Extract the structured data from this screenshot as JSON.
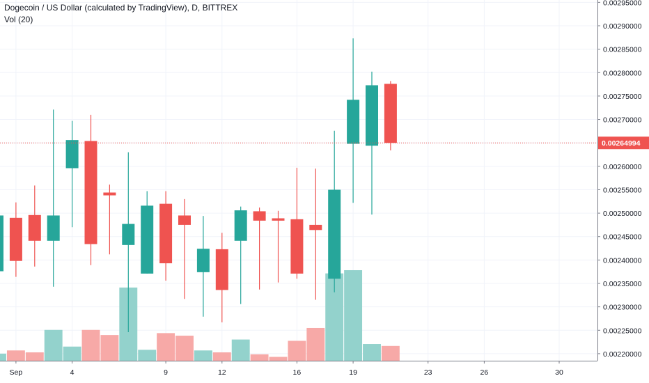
{
  "header": {
    "title": "Dogecoin / US Dollar (calculated by TradingView), D, BITTREX",
    "indicator": "Vol (20)"
  },
  "colors": {
    "up": "#26a69a",
    "down": "#ef5350",
    "vol_up": "#93d2cc",
    "vol_down": "#f7a9a7",
    "grid": "#f0f3fa",
    "axis_line": "#787b86",
    "last_price": "#ef5350"
  },
  "chart_data": {
    "type": "candlestick",
    "symbol": "Dogecoin / US Dollar",
    "interval": "D",
    "exchange": "BITTREX",
    "last_price": "0.00264994",
    "y_ticks": [
      "0.00295000",
      "0.00290000",
      "0.00285000",
      "0.00280000",
      "0.00275000",
      "0.00270000",
      "0.00265000",
      "0.00260000",
      "0.00255000",
      "0.00250000",
      "0.00245000",
      "0.00240000",
      "0.00235000",
      "0.00230000",
      "0.00225000",
      "0.00220000"
    ],
    "ylim": [
      0.002185,
      0.002955
    ],
    "x_ticks": [
      {
        "label": "Sep",
        "day": 1
      },
      {
        "label": "4",
        "day": 4
      },
      {
        "label": "9",
        "day": 9
      },
      {
        "label": "12",
        "day": 12
      },
      {
        "label": "16",
        "day": 16
      },
      {
        "label": "19",
        "day": 19
      },
      {
        "label": "23",
        "day": 23
      },
      {
        "label": "26",
        "day": 26
      },
      {
        "label": "30",
        "day": 30
      }
    ],
    "candles": [
      {
        "day": 0,
        "open": 0.002376,
        "high": 0.0025,
        "low": 0.00236,
        "close": 0.002495,
        "volume": 5.5e-06
      },
      {
        "day": 1,
        "open": 0.00249,
        "high": 0.002523,
        "low": 0.002364,
        "close": 0.002398,
        "volume": 8e-06
      },
      {
        "day": 2,
        "open": 0.002496,
        "high": 0.002559,
        "low": 0.002386,
        "close": 0.002441,
        "volume": 6.5e-06
      },
      {
        "day": 3,
        "open": 0.002441,
        "high": 0.002721,
        "low": 0.002343,
        "close": 0.002495,
        "volume": 2.4e-05
      },
      {
        "day": 4,
        "open": 0.002596,
        "high": 0.002697,
        "low": 0.00247,
        "close": 0.002656,
        "volume": 1.1e-05
      },
      {
        "day": 5,
        "open": 0.002654,
        "high": 0.00271,
        "low": 0.002389,
        "close": 0.002434,
        "volume": 2.4e-05
      },
      {
        "day": 6,
        "open": 0.002544,
        "high": 0.002561,
        "low": 0.002412,
        "close": 0.002538,
        "volume": 2e-05
      },
      {
        "day": 7,
        "open": 0.002432,
        "high": 0.00263,
        "low": 0.002246,
        "close": 0.002477,
        "volume": 5.7e-05
      },
      {
        "day": 8,
        "open": 0.002371,
        "high": 0.002547,
        "low": 0.002371,
        "close": 0.002516,
        "volume": 8.5e-06
      },
      {
        "day": 9,
        "open": 0.00252,
        "high": 0.002547,
        "low": 0.002356,
        "close": 0.002393,
        "volume": 2.15e-05
      },
      {
        "day": 10,
        "open": 0.002495,
        "high": 0.00253,
        "low": 0.002317,
        "close": 0.002475,
        "volume": 1.95e-05
      },
      {
        "day": 11,
        "open": 0.002374,
        "high": 0.002494,
        "low": 0.002279,
        "close": 0.002424,
        "volume": 8e-06
      },
      {
        "day": 12,
        "open": 0.002423,
        "high": 0.002458,
        "low": 0.002267,
        "close": 0.002336,
        "volume": 6.5e-06
      },
      {
        "day": 13,
        "open": 0.002441,
        "high": 0.002514,
        "low": 0.002306,
        "close": 0.002506,
        "volume": 1.65e-05
      },
      {
        "day": 14,
        "open": 0.002504,
        "high": 0.002512,
        "low": 0.002337,
        "close": 0.002484,
        "volume": 5e-06
      },
      {
        "day": 15,
        "open": 0.002489,
        "high": 0.002505,
        "low": 0.002352,
        "close": 0.002484,
        "volume": 3e-06
      },
      {
        "day": 16,
        "open": 0.002487,
        "high": 0.002597,
        "low": 0.00236,
        "close": 0.002371,
        "volume": 1.55e-05
      },
      {
        "day": 17,
        "open": 0.002475,
        "high": 0.002595,
        "low": 0.002315,
        "close": 0.002464,
        "volume": 2.55e-05
      },
      {
        "day": 18,
        "open": 0.00236,
        "high": 0.002676,
        "low": 0.002331,
        "close": 0.00255,
        "volume": 6.8e-05
      },
      {
        "day": 19,
        "open": 0.002648,
        "high": 0.002873,
        "low": 0.002522,
        "close": 0.002742,
        "volume": 7.05e-05
      },
      {
        "day": 20,
        "open": 0.002644,
        "high": 0.002802,
        "low": 0.002497,
        "close": 0.002773,
        "volume": 1.3e-05
      },
      {
        "day": 21,
        "open": 0.002776,
        "high": 0.002782,
        "low": 0.002634,
        "close": 0.00265,
        "volume": 1.15e-05
      }
    ],
    "volume_max": 7.05e-05,
    "grid": true,
    "legend_position": "top-left"
  }
}
